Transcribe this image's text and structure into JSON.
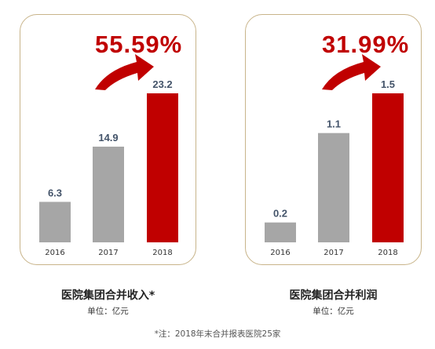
{
  "chart_data": [
    {
      "type": "bar",
      "title": "医院集团合并收入*",
      "unit": "单位：亿元",
      "growth_label": "55.59%",
      "categories": [
        "2016",
        "2017",
        "2018"
      ],
      "values": [
        6.3,
        14.9,
        23.2
      ],
      "value_labels": [
        "6.3",
        "14.9",
        "23.2"
      ],
      "ylim": [
        0,
        23.2
      ],
      "colors": [
        "#a6a6a6",
        "#a6a6a6",
        "#c00000"
      ]
    },
    {
      "type": "bar",
      "title": "医院集团合并利润",
      "unit": "单位：亿元",
      "growth_label": "31.99%",
      "categories": [
        "2016",
        "2017",
        "2018"
      ],
      "values": [
        0.2,
        1.1,
        1.5
      ],
      "value_labels": [
        "0.2",
        "1.1",
        "1.5"
      ],
      "ylim": [
        0,
        1.5
      ],
      "colors": [
        "#a6a6a6",
        "#a6a6a6",
        "#c00000"
      ]
    }
  ],
  "footnote": "*注：2018年末合并报表医院25家",
  "colors": {
    "accent": "#c00000",
    "bar": "#a6a6a6",
    "arrow": "#c00000",
    "frame": "#c8b48a",
    "value_text": "#44546a"
  },
  "icons": {
    "growth_arrow": "curved-up-arrow-icon"
  }
}
